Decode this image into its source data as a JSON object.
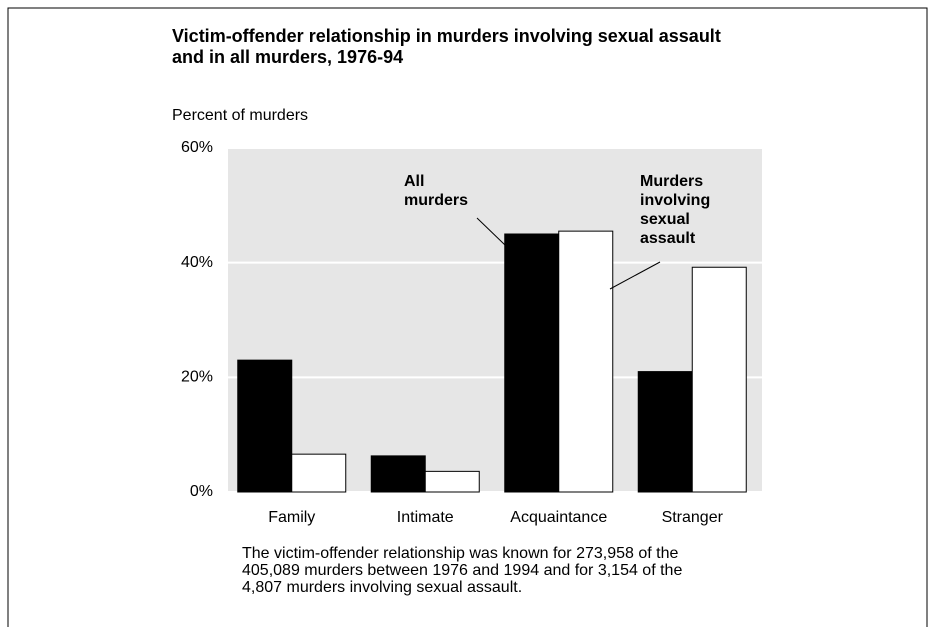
{
  "chart_data": {
    "type": "bar",
    "title": "Victim-offender relationship in murders involving sexual assault and in all murders, 1976-94",
    "y_label": "Percent of murders",
    "categories": [
      "Family",
      "Intimate",
      "Acquaintance",
      "Stranger"
    ],
    "series": [
      {
        "name": "All murders",
        "color": "#000000",
        "values": [
          23,
          6.3,
          45,
          21
        ]
      },
      {
        "name": "Murders involving sexual assault",
        "color": "#ffffff",
        "values": [
          6.6,
          3.6,
          45.5,
          39.2
        ]
      }
    ],
    "ylim": [
      0,
      60
    ],
    "yticks": [
      {
        "value": 0,
        "label": "0%"
      },
      {
        "value": 20,
        "label": "20%"
      },
      {
        "value": 40,
        "label": "40%"
      },
      {
        "value": 60,
        "label": "60%"
      }
    ],
    "grid": true,
    "plot_background": "#e6e6e6",
    "note": "The victim-offender relationship was known for 273,958 of the 405,089 murders between 1976 and 1994 and for 3,154 of the 4,807 murders involving sexual assault."
  }
}
